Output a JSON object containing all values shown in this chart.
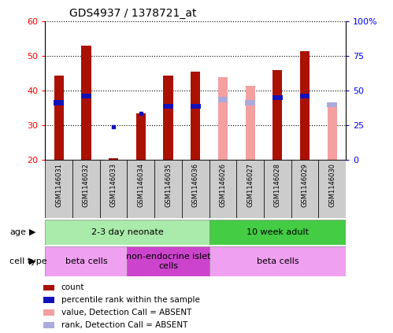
{
  "title": "GDS4937 / 1378721_at",
  "samples": [
    "GSM1146031",
    "GSM1146032",
    "GSM1146033",
    "GSM1146034",
    "GSM1146035",
    "GSM1146036",
    "GSM1146026",
    "GSM1146027",
    "GSM1146028",
    "GSM1146029",
    "GSM1146030"
  ],
  "count_values": [
    44.5,
    53.0,
    20.5,
    33.5,
    44.5,
    45.5,
    null,
    null,
    46.0,
    51.5,
    null
  ],
  "rank_values": [
    36.5,
    38.5,
    null,
    null,
    35.5,
    35.5,
    null,
    null,
    38.0,
    38.5,
    null
  ],
  "absent_count": [
    null,
    null,
    null,
    null,
    null,
    null,
    44.0,
    41.5,
    null,
    null,
    36.0
  ],
  "absent_rank": [
    null,
    null,
    null,
    null,
    null,
    null,
    37.5,
    36.5,
    null,
    null,
    36.0
  ],
  "blue_dot_values": [
    null,
    null,
    29.5,
    33.5,
    null,
    null,
    null,
    null,
    null,
    null,
    null
  ],
  "ymin": 20,
  "ymax": 60,
  "yticks": [
    20,
    30,
    40,
    50,
    60
  ],
  "ytick_labels": [
    "20",
    "30",
    "40",
    "50",
    "60"
  ],
  "right_yticks_pct": [
    0,
    25,
    50,
    75,
    100
  ],
  "right_ytick_labels": [
    "0",
    "25",
    "50",
    "75",
    "100%"
  ],
  "bar_width": 0.35,
  "age_groups": [
    {
      "label": "2-3 day neonate",
      "start": 0,
      "end": 6,
      "color": "#aaeaaa"
    },
    {
      "label": "10 week adult",
      "start": 6,
      "end": 11,
      "color": "#44cc44"
    }
  ],
  "cell_groups": [
    {
      "label": "beta cells",
      "start": 0,
      "end": 3,
      "color": "#f0a0f0"
    },
    {
      "label": "non-endocrine islet\ncells",
      "start": 3,
      "end": 6,
      "color": "#cc44cc"
    },
    {
      "label": "beta cells",
      "start": 6,
      "end": 11,
      "color": "#f0a0f0"
    }
  ],
  "present_bar_color": "#aa1100",
  "present_rank_color": "#1111bb",
  "absent_bar_color": "#f4a0a0",
  "absent_rank_color": "#aaaadd",
  "legend_items": [
    {
      "color": "#aa1100",
      "marker": "square",
      "label": "count"
    },
    {
      "color": "#1111bb",
      "marker": "square",
      "label": "percentile rank within the sample"
    },
    {
      "color": "#f4a0a0",
      "marker": "square",
      "label": "value, Detection Call = ABSENT"
    },
    {
      "color": "#aaaadd",
      "marker": "square",
      "label": "rank, Detection Call = ABSENT"
    }
  ]
}
